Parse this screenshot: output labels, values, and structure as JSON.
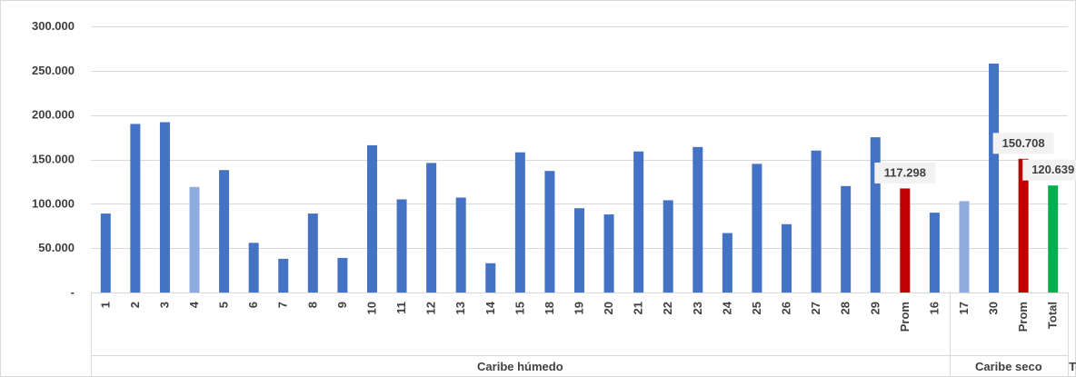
{
  "chart_data": {
    "type": "bar",
    "title": "",
    "xlabel": "",
    "ylabel": "",
    "ylim": [
      0,
      300000
    ],
    "yticks": [
      0,
      50000,
      100000,
      150000,
      200000,
      250000,
      300000
    ],
    "ytick_labels": [
      "-",
      "50.000",
      "100.000",
      "150.000",
      "200.000",
      "250.000",
      "300.000"
    ],
    "grid": true,
    "legend": "none",
    "colors": {
      "regular": "#4472C4",
      "highlight": "#8FAADC",
      "average": "#C00000",
      "total": "#00B050"
    },
    "groups": [
      {
        "name": "Caribe húmedo",
        "start": 0,
        "end": 28
      },
      {
        "name": "Caribe seco",
        "start": 29,
        "end": 32
      },
      {
        "name": "Total",
        "start": 33,
        "end": 33
      }
    ],
    "categories": [
      "1",
      "2",
      "3",
      "4",
      "5",
      "6",
      "7",
      "8",
      "9",
      "10",
      "11",
      "12",
      "13",
      "14",
      "15",
      "18",
      "19",
      "20",
      "21",
      "22",
      "23",
      "24",
      "25",
      "26",
      "27",
      "28",
      "29",
      "Prom",
      "16",
      "17",
      "30",
      "Prom",
      "Total"
    ],
    "values": [
      89000,
      190000,
      192000,
      119000,
      138000,
      56000,
      38000,
      89000,
      39000,
      166000,
      105000,
      146000,
      107000,
      33000,
      158000,
      137000,
      95000,
      88000,
      159000,
      104000,
      164000,
      67000,
      145000,
      77000,
      160000,
      120000,
      175000,
      117298,
      90000,
      103000,
      258000,
      150708,
      120639
    ],
    "bar_kinds": [
      "regular",
      "regular",
      "regular",
      "highlight",
      "regular",
      "regular",
      "regular",
      "regular",
      "regular",
      "regular",
      "regular",
      "regular",
      "regular",
      "regular",
      "regular",
      "regular",
      "regular",
      "regular",
      "regular",
      "regular",
      "regular",
      "regular",
      "regular",
      "regular",
      "regular",
      "regular",
      "regular",
      "average",
      "regular",
      "highlight",
      "regular",
      "average",
      "total"
    ],
    "data_labels": [
      {
        "index": 27,
        "text": "117.298"
      },
      {
        "index": 31,
        "text": "150.708"
      },
      {
        "index": 32,
        "text": "120.639"
      }
    ]
  }
}
